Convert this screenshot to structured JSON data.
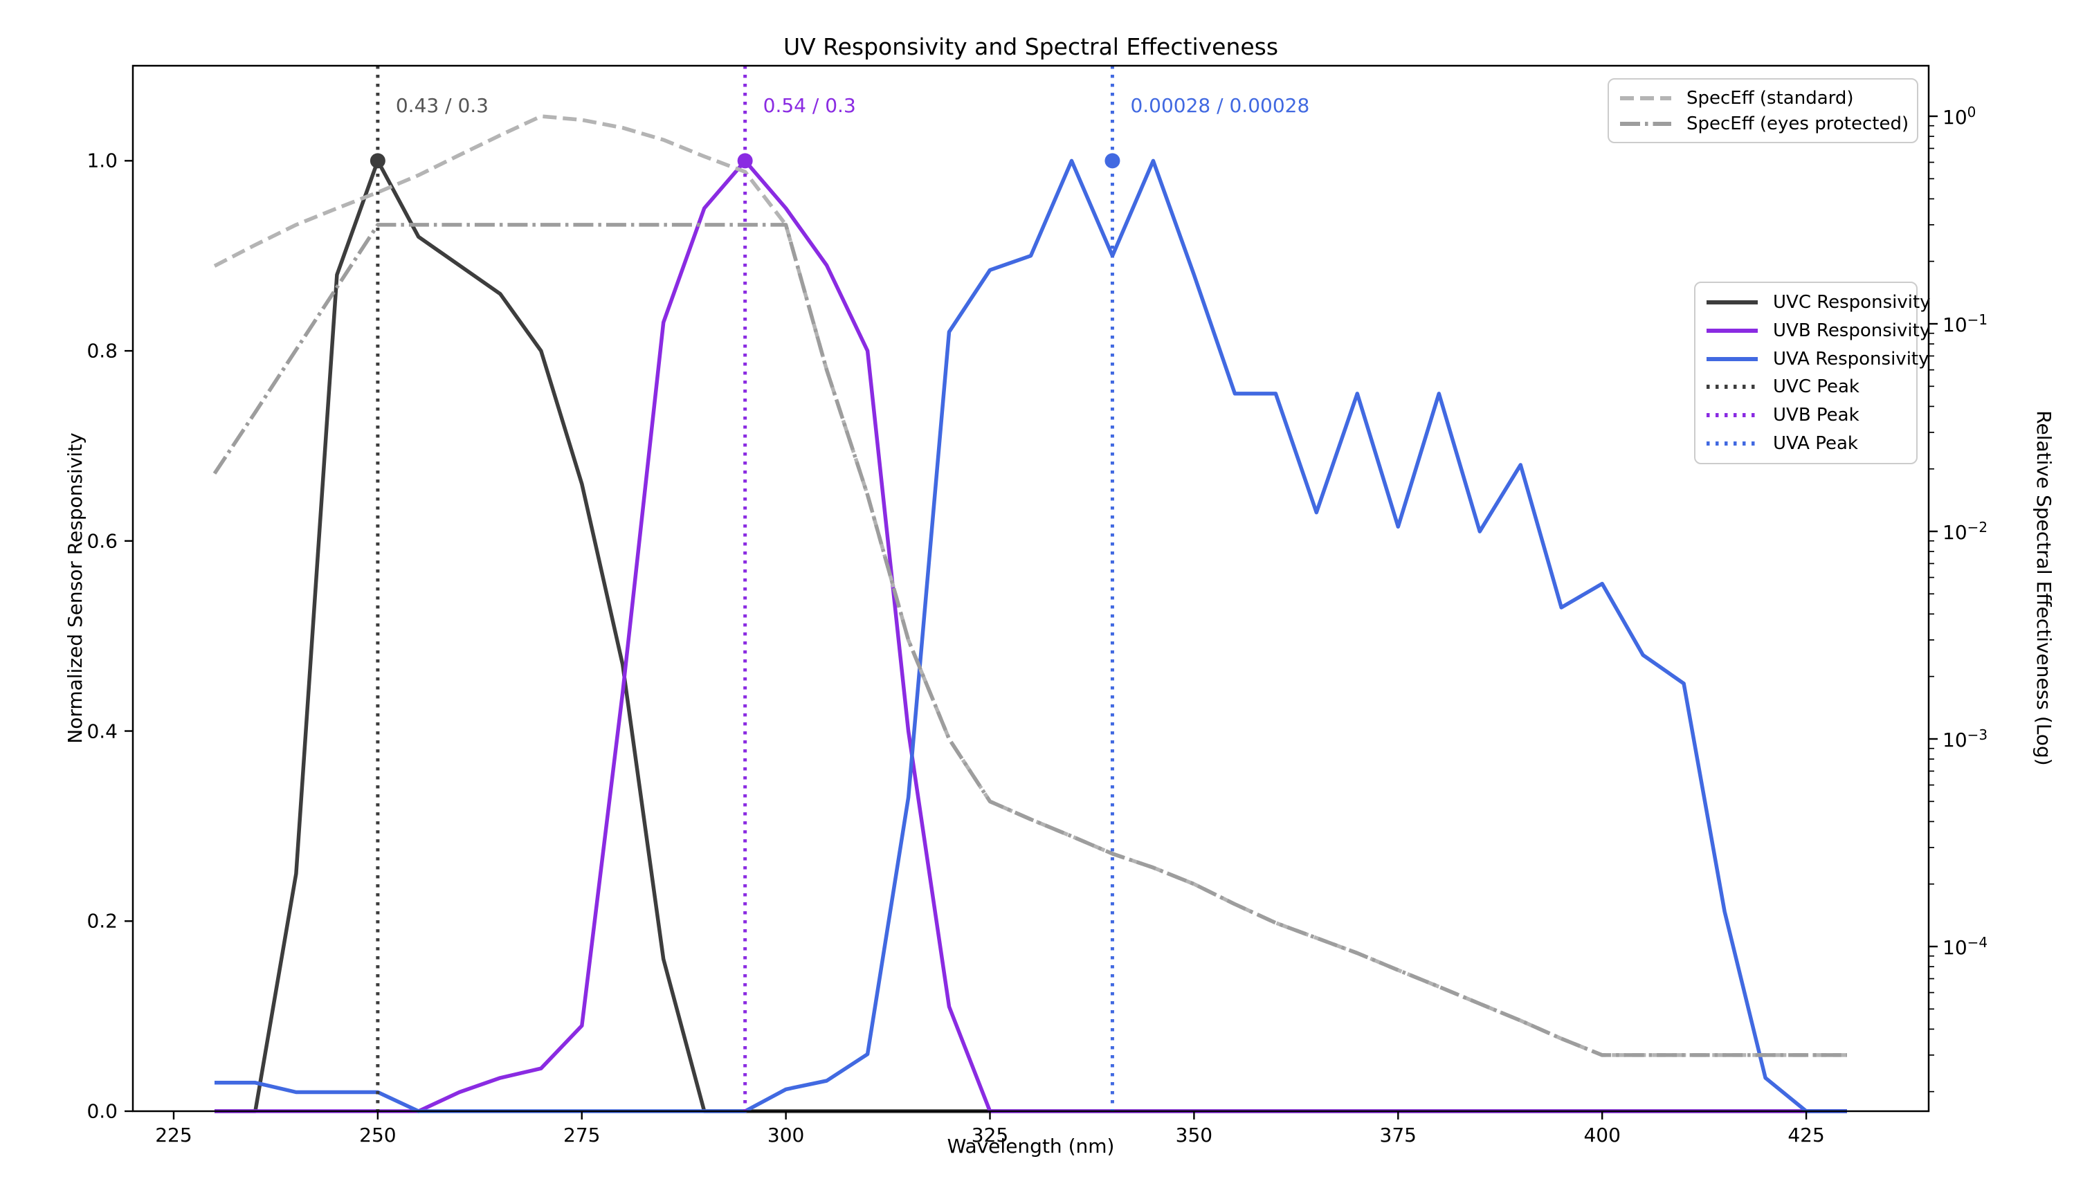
{
  "title": "UV Responsivity and Spectral Effectiveness",
  "axes": {
    "x_label": "Wavelength (nm)",
    "y_left_label": "Normalized Sensor Responsivity",
    "y_right_label": "Relative Spectral Effectiveness (Log)",
    "x_ticks": [
      225,
      250,
      275,
      300,
      325,
      350,
      375,
      400,
      425
    ],
    "y_left_ticks": [
      {
        "value": 0.0,
        "label": "0.0"
      },
      {
        "value": 0.2,
        "label": "0.2"
      },
      {
        "value": 0.4,
        "label": "0.4"
      },
      {
        "value": 0.6,
        "label": "0.6"
      },
      {
        "value": 0.8,
        "label": "0.8"
      },
      {
        "value": 1.0,
        "label": "1.0"
      }
    ],
    "y_right_ticks": [
      {
        "exponent": 0,
        "sup": "0"
      },
      {
        "exponent": -1,
        "sup": "−1"
      },
      {
        "exponent": -2,
        "sup": "−2"
      },
      {
        "exponent": -3,
        "sup": "−3"
      },
      {
        "exponent": -4,
        "sup": "−4"
      }
    ]
  },
  "annotations": [
    {
      "text": "0.43 / 0.3",
      "peak_nm": 250,
      "color": "#555555"
    },
    {
      "text": "0.54 / 0.3",
      "peak_nm": 295,
      "color": "#8A2BE2"
    },
    {
      "text": "0.00028 / 0.00028",
      "peak_nm": 340,
      "color": "#4169E1"
    }
  ],
  "legend_speceff": {
    "items": [
      {
        "label": "SpecEff (standard)",
        "color": "#b4b4b4",
        "dash": "dashed"
      },
      {
        "label": "SpecEff (eyes protected)",
        "color": "#9d9d9d",
        "dash": "dashdot"
      }
    ]
  },
  "legend_main": {
    "items": [
      {
        "label": "UVC Responsivity",
        "color": "#3d3d3d",
        "dash": "solid"
      },
      {
        "label": "UVB Responsivity",
        "color": "#8A2BE2",
        "dash": "solid"
      },
      {
        "label": "UVA Responsivity",
        "color": "#4169E1",
        "dash": "solid"
      },
      {
        "label": "UVC Peak",
        "color": "#3d3d3d",
        "dash": "dotted"
      },
      {
        "label": "UVB Peak",
        "color": "#8A2BE2",
        "dash": "dotted"
      },
      {
        "label": "UVA Peak",
        "color": "#4169E1",
        "dash": "dotted"
      }
    ]
  },
  "chart_data": {
    "type": "line",
    "title": "UV Responsivity and Spectral Effectiveness",
    "xlabel": "Wavelength (nm)",
    "ylabel_left": "Normalized Sensor Responsivity",
    "ylabel_right": "Relative Spectral Effectiveness (Log)",
    "xlim": [
      220,
      440
    ],
    "ylim_left": [
      0,
      1.1
    ],
    "right_axis_log_top_value": 1.0,
    "grid": false,
    "x": [
      230,
      235,
      240,
      245,
      250,
      255,
      260,
      265,
      270,
      275,
      280,
      285,
      290,
      295,
      300,
      305,
      310,
      315,
      320,
      325,
      330,
      335,
      340,
      345,
      350,
      355,
      360,
      365,
      370,
      375,
      380,
      385,
      390,
      395,
      400,
      405,
      410,
      415,
      420,
      425,
      430
    ],
    "series": [
      {
        "name": "UVC Responsivity",
        "axis": "left",
        "style": "solid",
        "color": "#3d3d3d",
        "values": [
          0,
          0,
          0.25,
          0.88,
          1.0,
          0.92,
          0.89,
          0.86,
          0.8,
          0.66,
          0.47,
          0.16,
          0,
          0,
          0,
          0,
          0,
          0,
          0,
          0,
          0,
          0,
          0,
          0,
          0,
          0,
          0,
          0,
          0,
          0,
          0,
          0,
          0,
          0,
          0,
          0,
          0,
          0,
          0,
          0,
          0
        ]
      },
      {
        "name": "UVB Responsivity",
        "axis": "left",
        "style": "solid",
        "color": "#8A2BE2",
        "values": [
          0,
          0,
          0,
          0,
          0,
          0,
          0.02,
          0.035,
          0.045,
          0.09,
          0.44,
          0.83,
          0.95,
          1.0,
          0.95,
          0.89,
          0.8,
          0.4,
          0.11,
          0,
          0,
          0,
          0,
          0,
          0,
          0,
          0,
          0,
          0,
          0,
          0,
          0,
          0,
          0,
          0,
          0,
          0,
          0,
          0,
          0,
          0
        ]
      },
      {
        "name": "UVA Responsivity",
        "axis": "left",
        "style": "solid",
        "color": "#4169E1",
        "values": [
          0.03,
          0.03,
          0.02,
          0.02,
          0.02,
          0,
          0,
          0,
          0,
          0,
          0,
          0,
          0,
          0,
          0.023,
          0.032,
          0.06,
          0.33,
          0.82,
          0.885,
          0.9,
          1.0,
          0.9,
          1.0,
          0.88,
          0.755,
          0.755,
          0.63,
          0.755,
          0.615,
          0.755,
          0.61,
          0.68,
          0.53,
          0.555,
          0.48,
          0.45,
          0.21,
          0.035,
          0,
          0
        ]
      },
      {
        "name": "SpecEff (standard)",
        "axis": "right",
        "style": "dashed",
        "color": "#b4b4b4",
        "values": [
          0.19,
          0.24,
          0.3,
          0.36,
          0.43,
          0.52,
          0.65,
          0.81,
          1.0,
          0.96,
          0.88,
          0.77,
          0.64,
          0.54,
          0.3,
          0.06,
          0.015,
          0.003,
          0.001,
          0.0005,
          0.00041,
          0.00034,
          0.00028,
          0.00024,
          0.0002,
          0.00016,
          0.00013,
          0.00011,
          9.3e-05,
          7.7e-05,
          6.4e-05,
          5.3e-05,
          4.4e-05,
          3.6e-05,
          3e-05,
          3e-05,
          3e-05,
          3e-05,
          3e-05,
          3e-05,
          3e-05
        ]
      },
      {
        "name": "SpecEff (eyes protected)",
        "axis": "right",
        "style": "dashdot",
        "color": "#9d9d9d",
        "values": [
          0.019,
          0.0375,
          0.075,
          0.15,
          0.3,
          0.3,
          0.3,
          0.3,
          0.3,
          0.3,
          0.3,
          0.3,
          0.3,
          0.3,
          0.3,
          0.06,
          0.015,
          0.003,
          0.001,
          0.0005,
          0.00041,
          0.00034,
          0.00028,
          0.00024,
          0.0002,
          0.00016,
          0.00013,
          0.00011,
          9.3e-05,
          7.7e-05,
          6.4e-05,
          5.3e-05,
          4.4e-05,
          3.6e-05,
          3e-05,
          3e-05,
          3e-05,
          3e-05,
          3e-05,
          3e-05,
          3e-05
        ]
      }
    ],
    "peaks": [
      {
        "name": "UVC Peak",
        "x": 250,
        "y": 1.0,
        "color": "#3d3d3d"
      },
      {
        "name": "UVB Peak",
        "x": 295,
        "y": 1.0,
        "color": "#8A2BE2"
      },
      {
        "name": "UVA Peak",
        "x": 340,
        "y": 1.0,
        "color": "#4169E1"
      }
    ],
    "legend_positions": {
      "speceff": "upper right",
      "main": "right"
    }
  }
}
